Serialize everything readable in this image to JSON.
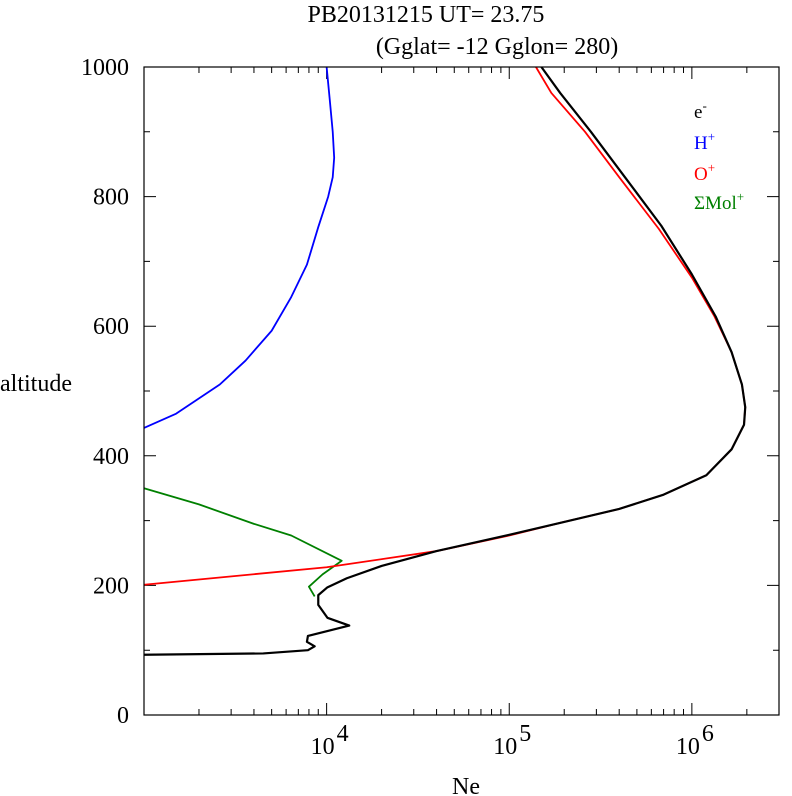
{
  "chart_data": {
    "type": "line",
    "title": "PB20131215   UT=  23.75",
    "subtitle": "(Gglat= -12   Gglon=  280)",
    "xlabel": "Ne",
    "ylabel": "altitude",
    "xscale": "log",
    "xlim": [
      1000,
      3000000
    ],
    "ylim": [
      0,
      1000
    ],
    "x_ticks": [
      {
        "value": 10000,
        "base": "10",
        "exp": "4"
      },
      {
        "value": 100000,
        "base": "10",
        "exp": "5"
      },
      {
        "value": 1000000,
        "base": "10",
        "exp": "6"
      }
    ],
    "y_ticks": [
      "0",
      "200",
      "400",
      "600",
      "800",
      "1000"
    ],
    "legend_position": "top-right",
    "series": [
      {
        "name": "e-",
        "label_base": "e",
        "label_sup": "-",
        "color": "#000000",
        "points": [
          [
            1000,
            93
          ],
          [
            4500,
            95
          ],
          [
            7900,
            100
          ],
          [
            8600,
            106
          ],
          [
            7800,
            113
          ],
          [
            7900,
            122
          ],
          [
            13300,
            138
          ],
          [
            10100,
            150
          ],
          [
            9000,
            170
          ],
          [
            9000,
            185
          ],
          [
            10100,
            197
          ],
          [
            12900,
            211
          ],
          [
            20000,
            230
          ],
          [
            40000,
            253
          ],
          [
            100000,
            278
          ],
          [
            200000,
            298
          ],
          [
            400000,
            318
          ],
          [
            700000,
            340
          ],
          [
            1200000,
            370
          ],
          [
            1650000,
            410
          ],
          [
            1930000,
            448
          ],
          [
            1960000,
            475
          ],
          [
            1880000,
            510
          ],
          [
            1650000,
            560
          ],
          [
            1350000,
            615
          ],
          [
            1000000,
            680
          ],
          [
            680000,
            755
          ],
          [
            430000,
            830
          ],
          [
            280000,
            900
          ],
          [
            190000,
            960
          ],
          [
            150000,
            1000
          ]
        ]
      },
      {
        "name": "H+",
        "label_base": "H",
        "label_sup": "+",
        "color": "#0000ff",
        "points": [
          [
            1000,
            443
          ],
          [
            1500,
            465
          ],
          [
            2600,
            510
          ],
          [
            3600,
            547
          ],
          [
            5000,
            593
          ],
          [
            6400,
            645
          ],
          [
            7800,
            695
          ],
          [
            9000,
            753
          ],
          [
            10200,
            800
          ],
          [
            10800,
            830
          ],
          [
            11000,
            860
          ],
          [
            10800,
            900
          ],
          [
            10400,
            950
          ],
          [
            10000,
            1000
          ]
        ]
      },
      {
        "name": "O+",
        "label_base": "O",
        "label_sup": "+",
        "color": "#ff0000",
        "points": [
          [
            1000,
            201
          ],
          [
            10000,
            228
          ],
          [
            40000,
            253
          ],
          [
            100000,
            277
          ],
          [
            200000,
            298
          ],
          [
            400000,
            318
          ],
          [
            700000,
            340
          ],
          [
            1200000,
            370
          ],
          [
            1650000,
            410
          ],
          [
            1930000,
            448
          ],
          [
            1960000,
            475
          ],
          [
            1880000,
            510
          ],
          [
            1650000,
            560
          ],
          [
            1330000,
            615
          ],
          [
            1000000,
            675
          ],
          [
            660000,
            750
          ],
          [
            400000,
            830
          ],
          [
            260000,
            900
          ],
          [
            170000,
            960
          ],
          [
            140000,
            1000
          ]
        ]
      },
      {
        "name": "ΣMol+",
        "label_base": "ΣMol",
        "label_sup": "+",
        "color": "#008000",
        "points": [
          [
            1000,
            350
          ],
          [
            2000,
            325
          ],
          [
            4000,
            295
          ],
          [
            6400,
            277
          ],
          [
            12100,
            238
          ],
          [
            9500,
            217
          ],
          [
            8000,
            198
          ],
          [
            8600,
            183
          ]
        ]
      }
    ]
  }
}
